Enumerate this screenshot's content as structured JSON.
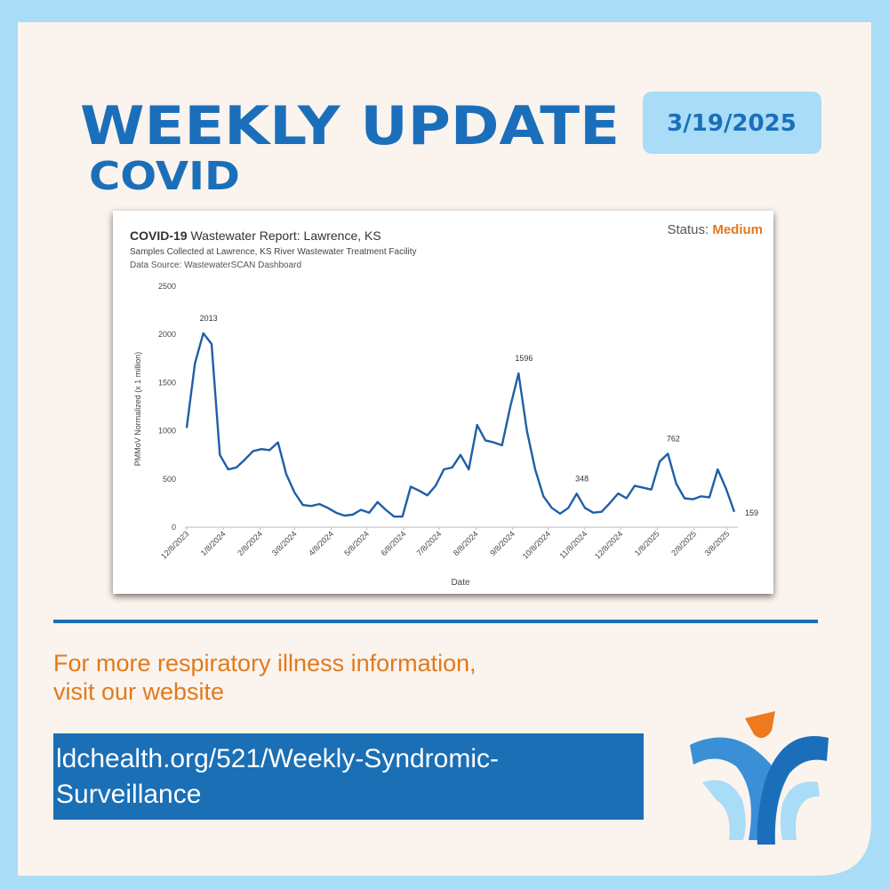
{
  "header": {
    "title": "WEEKLY UPDATE",
    "subtitle": "COVID",
    "date": "3/19/2025"
  },
  "chart_data": {
    "type": "line",
    "title_bold": "COVID-19",
    "title": "Wastewater Report: Lawrence, KS",
    "status_label": "Status:",
    "status": "Medium",
    "subtitle": "Samples Collected at Lawrence, KS River Wastewater Treatment Facility",
    "source": "Data Source: WastewaterSCAN Dashboard",
    "x_label": "Date",
    "y_label": "PMMoV Normalized (x 1 million)",
    "x": [
      "12/8/2023",
      "12/15/2023",
      "12/22/2023",
      "12/29/2023",
      "1/5/2024",
      "1/12/2024",
      "1/19/2024",
      "1/26/2024",
      "2/2/2024",
      "2/9/2024",
      "2/16/2024",
      "2/23/2024",
      "3/1/2024",
      "3/8/2024",
      "3/15/2024",
      "3/22/2024",
      "3/29/2024",
      "4/5/2024",
      "4/12/2024",
      "4/19/2024",
      "4/26/2024",
      "5/3/2024",
      "5/10/2024",
      "5/17/2024",
      "5/24/2024",
      "5/31/2024",
      "6/7/2024",
      "6/14/2024",
      "6/21/2024",
      "6/28/2024",
      "7/5/2024",
      "7/12/2024",
      "7/19/2024",
      "7/26/2024",
      "8/2/2024",
      "8/9/2024",
      "8/16/2024",
      "8/23/2024",
      "8/30/2024",
      "9/6/2024",
      "9/13/2024",
      "9/20/2024",
      "9/27/2024",
      "10/4/2024",
      "10/11/2024",
      "10/18/2024",
      "10/25/2024",
      "11/1/2024",
      "11/8/2024",
      "11/15/2024",
      "11/22/2024",
      "11/29/2024",
      "12/6/2024",
      "12/13/2024",
      "12/20/2024",
      "12/27/2024",
      "1/3/2025",
      "1/10/2025",
      "1/17/2025",
      "1/24/2025",
      "1/31/2025",
      "2/7/2025",
      "2/14/2025",
      "2/21/2025",
      "2/28/2025",
      "3/7/2025",
      "3/14/2025"
    ],
    "series": [
      {
        "name": "COVID-19",
        "color": "#1f5fa6",
        "values": [
          1030,
          1700,
          2013,
          1900,
          750,
          600,
          620,
          700,
          790,
          810,
          800,
          880,
          550,
          360,
          230,
          220,
          240,
          200,
          150,
          120,
          130,
          180,
          150,
          260,
          180,
          110,
          110,
          420,
          380,
          330,
          430,
          600,
          620,
          750,
          600,
          1060,
          900,
          880,
          850,
          1250,
          1596,
          1000,
          600,
          320,
          200,
          140,
          200,
          348,
          200,
          150,
          160,
          250,
          350,
          300,
          430,
          410,
          390,
          680,
          762,
          450,
          300,
          290,
          320,
          310,
          600,
          400,
          159
        ]
      }
    ],
    "annotations": [
      {
        "x": "12/22/2023",
        "y": 2013
      },
      {
        "x": "9/13/2024",
        "y": 1596
      },
      {
        "x": "11/1/2024",
        "y": 348
      },
      {
        "x": "1/17/2025",
        "y": 762
      },
      {
        "x": "3/14/2025",
        "y": 159
      }
    ],
    "xlim": [
      "12/8/2023",
      "3/14/2025"
    ],
    "xticks": [
      "12/8/2023",
      "1/8/2024",
      "2/8/2024",
      "3/8/2024",
      "4/8/2024",
      "5/8/2024",
      "6/8/2024",
      "7/8/2024",
      "8/8/2024",
      "9/8/2024",
      "10/8/2024",
      "11/8/2024",
      "12/8/2024",
      "1/8/2025",
      "2/8/2025",
      "3/8/2025"
    ],
    "ylim": [
      0,
      2500
    ],
    "yticks": [
      0,
      500,
      1000,
      1500,
      2000,
      2500
    ],
    "grid": false
  },
  "footer": {
    "info_lines": [
      "For more respiratory illness information,",
      "visit our website"
    ],
    "link_lines": [
      "ldchealth.org/521/Weekly-Syndromic-",
      "Surveillance"
    ]
  }
}
